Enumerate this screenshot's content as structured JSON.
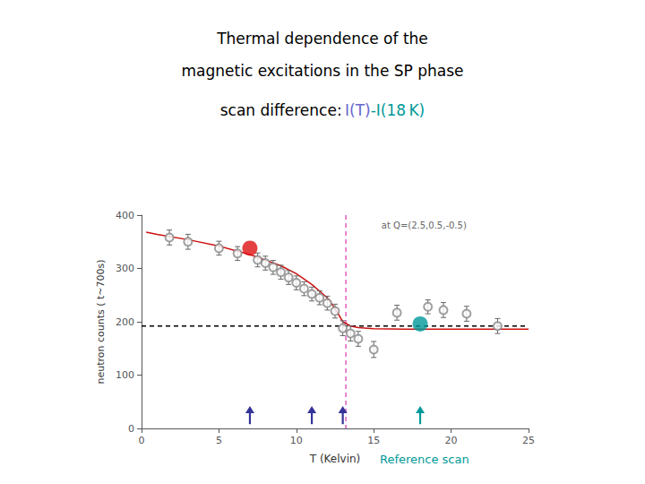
{
  "chart_data": {
    "type": "scatter",
    "title": [
      "Thermal dependence of the",
      "magnetic excitations in the SP phase"
    ],
    "subtitle": [
      {
        "text": "scan difference: ",
        "color": "#000000"
      },
      {
        "text": "I(T)",
        "color": "#6666cc"
      },
      {
        "text": "-I(18 K)",
        "color": "#009999"
      }
    ],
    "annotation": "at Q=(2.5,0.5,-0.5)",
    "reference_label": {
      "text": "Reference scan",
      "color": "#009999"
    },
    "xlabel": "T (Kelvin)",
    "ylabel": "neutron counts ( t~700s)",
    "xlim": [
      0,
      25
    ],
    "ylim": [
      0,
      400
    ],
    "xticks": [
      0,
      5,
      10,
      15,
      20,
      25
    ],
    "yticks": [
      0,
      100,
      200,
      300,
      400
    ],
    "grid": false,
    "series": [
      {
        "type": "line",
        "color": "#cc1111",
        "line_style": "solid",
        "x": [
          0.3,
          1.0,
          3.0,
          5.0,
          7.0,
          9.0,
          10.0,
          11.0,
          12.0,
          12.5,
          13.0,
          13.5,
          14.0,
          15.0,
          17.0,
          19.0,
          22.0,
          25.0
        ],
        "values": [
          368,
          364,
          354,
          342,
          326,
          305,
          290,
          270,
          245,
          225,
          200,
          192,
          189,
          187,
          186,
          186,
          186,
          186
        ]
      },
      {
        "type": "scatter",
        "marker": "open_circle",
        "color": "#888888",
        "error_color": "#666666",
        "x": [
          1.8,
          3.0,
          5.0,
          6.2,
          7.5,
          8.0,
          8.5,
          9.0,
          9.5,
          10.0,
          10.5,
          11.0,
          11.5,
          12.0,
          12.5,
          13.0,
          13.5,
          14.0,
          15.0,
          16.5,
          18.5,
          19.5,
          21.0,
          23.0
        ],
        "values": [
          358,
          350,
          338,
          328,
          316,
          310,
          302,
          293,
          283,
          273,
          262,
          252,
          245,
          235,
          220,
          188,
          178,
          168,
          148,
          217,
          228,
          222,
          215,
          192
        ],
        "yerr": [
          14,
          14,
          13,
          13,
          13,
          13,
          13,
          13,
          13,
          13,
          13,
          13,
          13,
          13,
          13,
          14,
          14,
          14,
          15,
          14,
          13,
          14,
          14,
          14
        ]
      },
      {
        "type": "hline",
        "value": 192,
        "color": "#000000",
        "line_style": "dashed"
      },
      {
        "type": "vline",
        "value": 13.2,
        "color": "#dd44bb",
        "line_style": "dashed"
      },
      {
        "type": "scatter",
        "marker": "filled_circle",
        "color": "#dd1111",
        "x": [
          7.0
        ],
        "values": [
          338
        ]
      },
      {
        "type": "scatter",
        "marker": "filled_circle",
        "color": "#009999",
        "x": [
          18.0
        ],
        "values": [
          196
        ]
      },
      {
        "type": "arrow",
        "x": [
          7.0,
          11.0,
          13.0,
          18.0
        ],
        "y_from": 8,
        "y_to": 42,
        "colors": [
          "#333399",
          "#333399",
          "#333399",
          "#009999"
        ]
      }
    ]
  }
}
